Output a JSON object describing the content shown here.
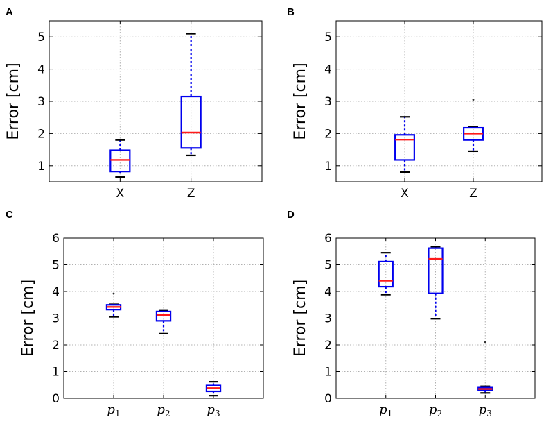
{
  "chart_data": [
    {
      "panel": "A",
      "type": "boxplot",
      "ylabel": "Error [cm]",
      "ylim": [
        0.5,
        5.5
      ],
      "yticks": [
        1,
        2,
        3,
        4,
        5
      ],
      "ytick_labels": [
        "1",
        "2",
        "3",
        "4",
        "5"
      ],
      "grid": true,
      "math_categories": false,
      "categories": [
        "X",
        "Z"
      ],
      "boxes": [
        {
          "label": "X",
          "whislo": 0.65,
          "q1": 0.82,
          "med": 1.18,
          "q3": 1.48,
          "whishi": 1.8,
          "fliers": []
        },
        {
          "label": "Z",
          "whislo": 1.32,
          "q1": 1.55,
          "med": 2.03,
          "q3": 3.15,
          "whishi": 5.1,
          "fliers": []
        }
      ]
    },
    {
      "panel": "B",
      "type": "boxplot",
      "ylabel": "Error [cm]",
      "ylim": [
        0.5,
        5.5
      ],
      "yticks": [
        1,
        2,
        3,
        4,
        5
      ],
      "ytick_labels": [
        "1",
        "2",
        "3",
        "4",
        "5"
      ],
      "grid": true,
      "math_categories": false,
      "categories": [
        "X",
        "Z"
      ],
      "boxes": [
        {
          "label": "X",
          "whislo": 0.8,
          "q1": 1.18,
          "med": 1.81,
          "q3": 1.96,
          "whishi": 2.52,
          "fliers": []
        },
        {
          "label": "Z",
          "whislo": 1.45,
          "q1": 1.8,
          "med": 2.0,
          "q3": 2.18,
          "whishi": 2.2,
          "fliers": [
            3.05
          ]
        }
      ]
    },
    {
      "panel": "C",
      "type": "boxplot",
      "ylabel": "Error [cm]",
      "ylim": [
        0,
        6
      ],
      "yticks": [
        0,
        1,
        2,
        3,
        4,
        5,
        6
      ],
      "ytick_labels": [
        "0",
        "1",
        "2",
        "3",
        "4",
        "5",
        "6"
      ],
      "grid": true,
      "math_categories": true,
      "categories": [
        "p",
        "p",
        "p"
      ],
      "subscripts": [
        "1",
        "2",
        "3"
      ],
      "boxes": [
        {
          "label": "p1",
          "whislo": 3.05,
          "q1": 3.32,
          "med": 3.42,
          "q3": 3.5,
          "whishi": 3.52,
          "fliers": [
            3.92
          ]
        },
        {
          "label": "p2",
          "whislo": 2.42,
          "q1": 2.9,
          "med": 3.12,
          "q3": 3.25,
          "whishi": 3.28,
          "fliers": []
        },
        {
          "label": "p3",
          "whislo": 0.1,
          "q1": 0.26,
          "med": 0.38,
          "q3": 0.48,
          "whishi": 0.62,
          "fliers": []
        }
      ]
    },
    {
      "panel": "D",
      "type": "boxplot",
      "ylabel": "Error [cm]",
      "ylim": [
        0,
        6
      ],
      "yticks": [
        0,
        1,
        2,
        3,
        4,
        5,
        6
      ],
      "ytick_labels": [
        "0",
        "1",
        "2",
        "3",
        "4",
        "5",
        "6"
      ],
      "grid": true,
      "math_categories": true,
      "categories": [
        "p",
        "p",
        "p"
      ],
      "subscripts": [
        "1",
        "2",
        "3"
      ],
      "boxes": [
        {
          "label": "p1",
          "whislo": 3.88,
          "q1": 4.18,
          "med": 4.4,
          "q3": 5.12,
          "whishi": 5.45,
          "fliers": []
        },
        {
          "label": "p2",
          "whislo": 2.98,
          "q1": 3.93,
          "med": 5.22,
          "q3": 5.62,
          "whishi": 5.68,
          "fliers": []
        },
        {
          "label": "p3",
          "whislo": 0.2,
          "q1": 0.3,
          "med": 0.35,
          "q3": 0.4,
          "whishi": 0.45,
          "fliers": [
            2.1
          ]
        }
      ]
    }
  ]
}
